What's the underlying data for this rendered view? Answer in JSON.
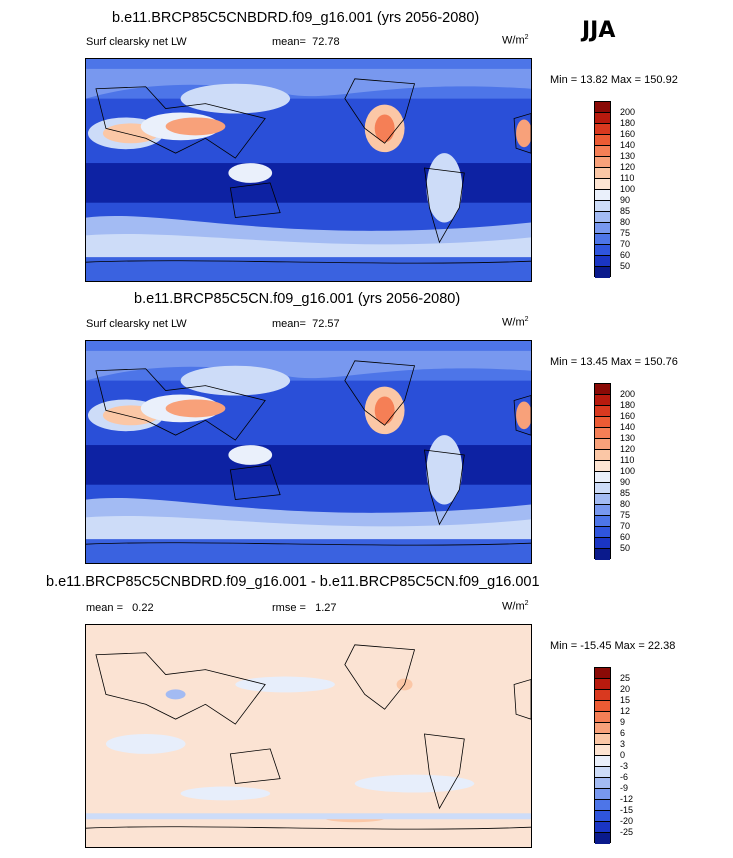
{
  "season": "JJA",
  "units_base": "W/m",
  "units_exp": "2",
  "colors": {
    "abs": [
      "#0a1a8c",
      "#1a35c4",
      "#2f55dd",
      "#4d75e8",
      "#7898ef",
      "#a3bbf3",
      "#cddcf8",
      "#eaf0fb",
      "#fde4d2",
      "#fbc7a6",
      "#f8a17a",
      "#f57f56",
      "#ec5b34",
      "#d9391f",
      "#b81a0e",
      "#8a0a06"
    ],
    "diff": [
      "#0a1a8c",
      "#1a35c4",
      "#2f55dd",
      "#4d75e8",
      "#7898ef",
      "#a3bbf3",
      "#cddcf8",
      "#eaf0fb",
      "#fde4d2",
      "#fbc7a6",
      "#f8a17a",
      "#f57f56",
      "#ec5b34",
      "#d9391f",
      "#b81a0e",
      "#8a0a06"
    ]
  },
  "panels": [
    {
      "title": "b.e11.BRCP85C5CNBDRD.f09_g16.001 (yrs 2056-2080)",
      "variable": "Surf clearsky net LW",
      "mean_label": "mean=",
      "mean_value": "72.78",
      "minmax": "Min =  13.82 Max = 150.92",
      "levels": [
        "200",
        "180",
        "160",
        "140",
        "130",
        "120",
        "110",
        "100",
        "90",
        "85",
        "80",
        "75",
        "70",
        "60",
        "50"
      ]
    },
    {
      "title": "b.e11.BRCP85C5CN.f09_g16.001 (yrs 2056-2080)",
      "variable": "Surf clearsky net LW",
      "mean_label": "mean=",
      "mean_value": "72.57",
      "minmax": "Min =  13.45 Max = 150.76",
      "levels": [
        "200",
        "180",
        "160",
        "140",
        "130",
        "120",
        "110",
        "100",
        "90",
        "85",
        "80",
        "75",
        "70",
        "60",
        "50"
      ]
    },
    {
      "title": "b.e11.BRCP85C5CNBDRD.f09_g16.001 - b.e11.BRCP85C5CN.f09_g16.001",
      "mean_label": "mean =",
      "mean_value": "0.22",
      "rmse_label": "rmse =",
      "rmse_value": "1.27",
      "minmax": "Min = -15.45 Max =  22.38",
      "levels": [
        "25",
        "20",
        "15",
        "12",
        "9",
        "6",
        "3",
        "0",
        "-3",
        "-6",
        "-9",
        "-12",
        "-15",
        "-20",
        "-25"
      ]
    }
  ]
}
